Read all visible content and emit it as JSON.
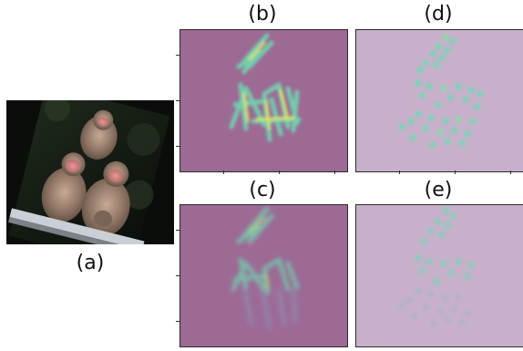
{
  "figure": {
    "labels": {
      "a": "(a)",
      "b": "(b)",
      "c": "(c)",
      "d": "(d)",
      "e": "(e)"
    },
    "colors": {
      "heatmap_background": "#9c6a95",
      "point_background": "#c8b0cb",
      "highlight_yellow": "#e8ec5a",
      "highlight_cyan": "#71d6b0",
      "photo_dark": "#101410"
    },
    "panels": [
      {
        "id": "a",
        "content": "photo-of-monkeys"
      },
      {
        "id": "b",
        "content": "limb-heatmap"
      },
      {
        "id": "c",
        "content": "limb-heatmap-faded"
      },
      {
        "id": "d",
        "content": "keypoint-heatmap"
      },
      {
        "id": "e",
        "content": "keypoint-heatmap-faded"
      }
    ]
  }
}
